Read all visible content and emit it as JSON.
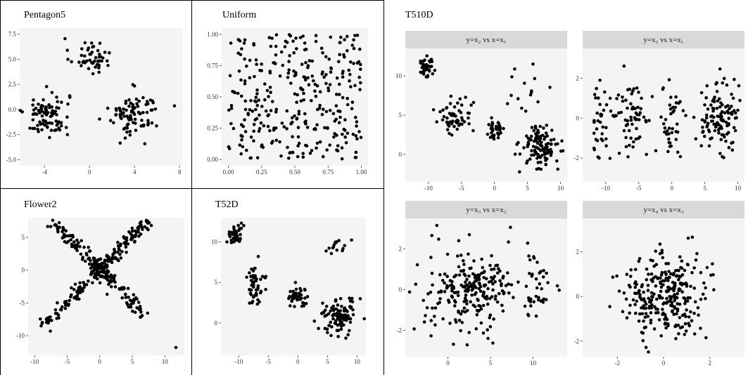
{
  "chart_data": [
    {
      "id": "pentagon5",
      "type": "scatter",
      "title": "Pentagon5",
      "xlim": [
        -6.2,
        8.3
      ],
      "ylim": [
        -5.6,
        8.1
      ],
      "xticks": [
        -4,
        0,
        4,
        8
      ],
      "yticks": [
        -5.0,
        -2.5,
        0.0,
        2.5,
        5.0,
        7.5
      ],
      "ytick_labels": [
        "-5.0",
        "-2.5",
        "0.0",
        "2.5",
        "5.0",
        "7.5"
      ],
      "clusters": [
        {
          "cx": 0,
          "cy": 5.3,
          "sx": 0.9,
          "sy": 0.9,
          "n": 50
        },
        {
          "cx": -3.8,
          "cy": -0.5,
          "sx": 1.0,
          "sy": 1.1,
          "n": 90
        },
        {
          "cx": 4.0,
          "cy": -0.5,
          "sx": 1.1,
          "sy": 1.1,
          "n": 90
        }
      ],
      "grid": false
    },
    {
      "id": "uniform",
      "type": "scatter",
      "title": "Uniform",
      "xlim": [
        -0.05,
        1.05
      ],
      "ylim": [
        -0.05,
        1.05
      ],
      "xticks": [
        0.0,
        0.25,
        0.5,
        0.75,
        1.0
      ],
      "xtick_labels": [
        "0.00",
        "0.25",
        "0.50",
        "0.75",
        "1.00"
      ],
      "yticks": [
        0.0,
        0.25,
        0.5,
        0.75,
        1.0
      ],
      "ytick_labels": [
        "0.00",
        "0.25",
        "0.50",
        "0.75",
        "1.00"
      ],
      "uniform": {
        "xmin": 0,
        "xmax": 1,
        "ymin": 0,
        "ymax": 1,
        "n": 320
      },
      "grid": false
    },
    {
      "id": "flower2",
      "type": "scatter",
      "title": "Flower2",
      "xlim": [
        -11,
        13
      ],
      "ylim": [
        -13,
        8
      ],
      "xticks": [
        -10,
        -5,
        0,
        5,
        10
      ],
      "yticks": [
        -10,
        -5,
        0,
        5
      ],
      "arms": [
        {
          "dx": 1,
          "dy": 1,
          "len": 9.5,
          "n": 90
        },
        {
          "dx": -1,
          "dy": 1,
          "len": 9.5,
          "n": 70
        },
        {
          "dx": -1,
          "dy": -1,
          "len": 11,
          "n": 70
        },
        {
          "dx": 1,
          "dy": -1,
          "len": 9,
          "n": 60
        }
      ],
      "center": {
        "n": 70,
        "s": 0.7
      },
      "outliers": [
        [
          11.7,
          -11.8
        ],
        [
          -9,
          -8.5
        ],
        [
          -8.2,
          -7.5
        ]
      ],
      "grid": false
    },
    {
      "id": "t52d",
      "type": "scatter",
      "title": "T52D",
      "xlim": [
        -13,
        11.5
      ],
      "ylim": [
        -4,
        13
      ],
      "xticks": [
        -10,
        -5,
        0,
        5,
        10
      ],
      "yticks": [
        0,
        5,
        10
      ],
      "clusters": [
        {
          "cx": -10.5,
          "cy": 11.0,
          "sx": 0.6,
          "sy": 0.6,
          "n": 40
        },
        {
          "cx": -7.0,
          "cy": 4.8,
          "sx": 0.9,
          "sy": 1.2,
          "n": 50
        },
        {
          "cx": 0,
          "cy": 3.2,
          "sx": 0.8,
          "sy": 0.8,
          "n": 40
        },
        {
          "cx": 6.5,
          "cy": 9.5,
          "sx": 1.0,
          "sy": 0.4,
          "n": 15
        },
        {
          "cx": 7.0,
          "cy": 1.0,
          "sx": 1.5,
          "sy": 1.3,
          "n": 100
        }
      ],
      "grid": false
    },
    {
      "id": "t510d",
      "type": "scatter",
      "title": "T510D",
      "facets": [
        {
          "label": "y=x₂ vs x=x₁",
          "xlim": [
            -13.5,
            11
          ],
          "ylim": [
            -3.5,
            13.5
          ],
          "xticks": [
            -10,
            -5,
            0,
            5,
            10
          ],
          "yticks": [
            0,
            5,
            10
          ],
          "clusters": [
            {
              "cx": -10.5,
              "cy": 11.0,
              "sx": 0.6,
              "sy": 0.6,
              "n": 40
            },
            {
              "cx": -6.0,
              "cy": 4.5,
              "sx": 1.2,
              "sy": 1.0,
              "n": 60
            },
            {
              "cx": 0,
              "cy": 3.2,
              "sx": 0.7,
              "sy": 0.7,
              "n": 40
            },
            {
              "cx": 5.5,
              "cy": 8.8,
              "sx": 1.3,
              "sy": 1.5,
              "n": 15
            },
            {
              "cx": 7.0,
              "cy": 1.0,
              "sx": 1.5,
              "sy": 1.3,
              "n": 110
            }
          ]
        },
        {
          "label": "y=x₃ vs x=x₁",
          "xlim": [
            -13.5,
            11
          ],
          "ylim": [
            -3.2,
            3.5
          ],
          "xticks": [
            -10,
            -5,
            0,
            5,
            10
          ],
          "yticks": [
            -2,
            0,
            2
          ],
          "clusters": [
            {
              "cx": -10.5,
              "cy": 0,
              "sx": 0.8,
              "sy": 1.0,
              "n": 40
            },
            {
              "cx": -6.0,
              "cy": 0,
              "sx": 1.3,
              "sy": 1.0,
              "n": 60
            },
            {
              "cx": 0,
              "cy": 0,
              "sx": 0.8,
              "sy": 1.0,
              "n": 40
            },
            {
              "cx": 7.0,
              "cy": 0,
              "sx": 1.6,
              "sy": 1.0,
              "n": 120
            }
          ]
        },
        {
          "label": "y=x₃ vs x=x₂",
          "xlim": [
            -5,
            14
          ],
          "ylim": [
            -3.3,
            3.5
          ],
          "xticks": [
            0,
            5,
            10
          ],
          "yticks": [
            -2,
            0,
            2
          ],
          "clusters": [
            {
              "cx": 2.5,
              "cy": 0,
              "sx": 2.5,
              "sy": 1.0,
              "n": 230
            },
            {
              "cx": 10.5,
              "cy": 0,
              "sx": 1.0,
              "sy": 1.0,
              "n": 40
            }
          ]
        },
        {
          "label": "y=x₄ vs x=x₃",
          "xlim": [
            -3.5,
            3.5
          ],
          "ylim": [
            -2.7,
            3.5
          ],
          "xticks": [
            -2,
            0,
            2
          ],
          "yticks": [
            -2,
            0,
            2
          ],
          "clusters": [
            {
              "cx": 0,
              "cy": 0,
              "sx": 1.0,
              "sy": 1.0,
              "n": 280
            }
          ]
        }
      ],
      "grid": false
    }
  ]
}
